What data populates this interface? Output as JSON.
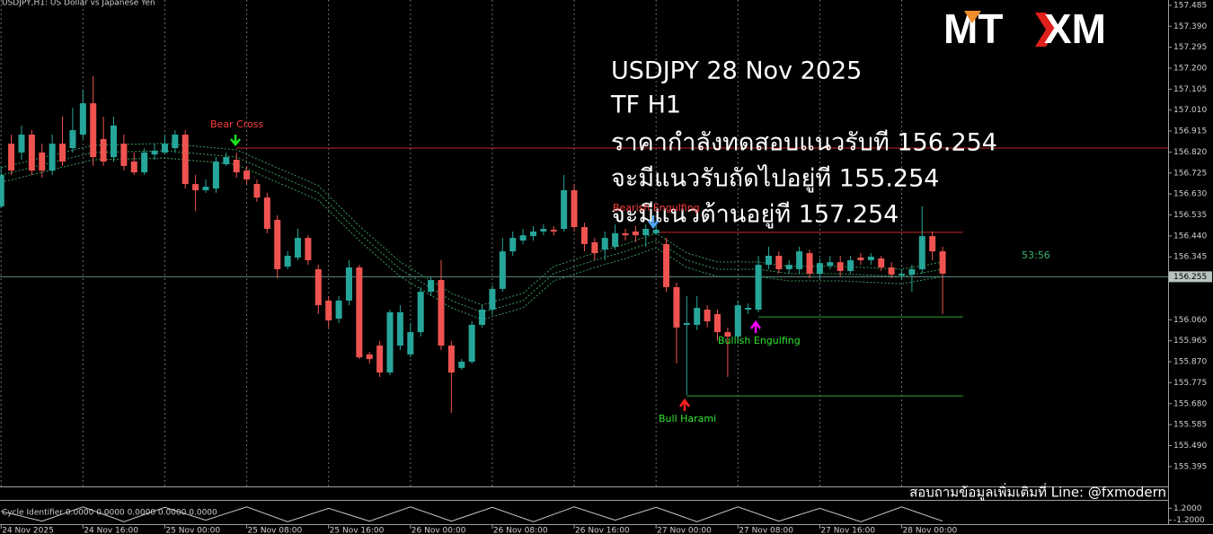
{
  "chart_data": {
    "type": "candlestick",
    "title": "USDJPY,H1: US Dollar vs Japanese Yen",
    "up_color": "#26a69a",
    "down_color": "#ef5350",
    "ylim": [
      155.313,
      157.509
    ],
    "yticks": [
      157.485,
      {
        "value": 157.39,
        "label": "157.390"
      },
      157.295,
      {
        "value": 157.2,
        "label": "157.200"
      },
      157.105,
      {
        "value": 157.01,
        "label": "157.010"
      },
      156.915,
      {
        "value": 156.82,
        "label": "156.820"
      },
      156.725,
      {
        "value": 156.63,
        "label": "156.630"
      },
      156.535,
      {
        "value": 156.44,
        "label": "156.440"
      },
      156.345,
      {
        "value": 156.06,
        "label": "156.060"
      },
      155.965,
      {
        "value": 155.87,
        "label": "155.870"
      },
      155.775,
      {
        "value": 155.68,
        "label": "155.680"
      },
      155.585,
      {
        "value": 155.49,
        "label": "155.490"
      },
      155.395
    ],
    "xticks": [
      {
        "value": 0,
        "label": "24 Nov 2025"
      },
      {
        "value": 8,
        "label": "24 Nov 16:00"
      },
      {
        "value": 16,
        "label": "25 Nov 00:00"
      },
      {
        "value": 24,
        "label": "25 Nov 08:00"
      },
      {
        "value": 32,
        "label": "25 Nov 16:00"
      },
      {
        "value": 40,
        "label": "26 Nov 00:00"
      },
      {
        "value": 48,
        "label": "26 Nov 08:00"
      },
      {
        "value": 56,
        "label": "26 Nov 16:00"
      },
      {
        "value": 64,
        "label": "27 Nov 00:00"
      },
      {
        "value": 72,
        "label": "27 Nov 08:00"
      },
      {
        "value": 80,
        "label": "27 Nov 16:00"
      },
      {
        "value": 88,
        "label": "28 Nov 00:00"
      }
    ],
    "open": [
      156.574,
      156.858,
      156.818,
      156.899,
      156.818,
      156.736,
      156.858,
      156.838,
      156.899,
      157.041,
      156.879,
      156.797,
      156.858,
      156.777,
      156.728,
      156.809,
      156.818,
      156.838,
      156.899,
      156.675,
      156.647,
      156.655,
      156.765,
      156.785,
      156.736,
      156.675,
      156.614,
      156.513,
      156.301,
      156.342,
      156.431,
      156.289,
      156.147,
      156.065,
      156.147,
      156.297,
      155.903,
      155.943,
      155.821,
      155.943,
      155.903,
      156.004,
      156.187,
      156.24,
      155.943,
      155.842,
      155.87,
      156.037,
      156.106,
      156.2,
      156.37,
      156.419,
      156.439,
      156.46,
      156.468,
      156.472,
      156.647,
      156.48,
      156.411,
      156.378,
      156.391,
      156.452,
      156.46,
      156.443,
      156.452,
      156.403,
      156.208,
      156.037,
      156.037,
      156.106,
      156.086,
      156.004,
      155.984,
      156.106,
      156.106,
      156.309,
      156.35,
      156.289,
      156.289,
      156.362,
      156.269,
      156.305,
      156.321,
      156.281,
      156.342,
      156.33,
      156.338,
      156.297,
      156.261,
      156.265,
      156.289,
      156.439,
      156.37
    ],
    "high": [
      156.757,
      156.899,
      156.94,
      156.919,
      156.858,
      156.899,
      156.98,
      157.021,
      157.102,
      157.163,
      156.98,
      156.98,
      156.899,
      156.818,
      156.838,
      156.858,
      156.899,
      156.919,
      156.919,
      156.716,
      156.696,
      156.797,
      156.818,
      156.818,
      156.757,
      156.696,
      156.635,
      156.533,
      156.37,
      156.472,
      156.443,
      156.309,
      156.167,
      156.167,
      156.33,
      156.309,
      155.915,
      155.964,
      156.106,
      156.126,
      156.045,
      156.208,
      156.256,
      156.33,
      155.964,
      155.882,
      156.053,
      156.126,
      156.216,
      156.431,
      156.46,
      156.472,
      156.484,
      156.492,
      156.484,
      156.716,
      156.675,
      156.5,
      156.431,
      156.46,
      156.492,
      156.472,
      156.484,
      156.492,
      156.5,
      156.431,
      156.228,
      156.167,
      156.167,
      156.126,
      156.106,
      156.025,
      156.147,
      156.134,
      156.35,
      156.391,
      156.37,
      156.33,
      156.391,
      156.378,
      156.338,
      156.35,
      156.35,
      156.35,
      156.362,
      156.362,
      156.35,
      156.321,
      156.289,
      156.309,
      156.574,
      156.46,
      156.391
    ],
    "low": [
      156.566,
      156.716,
      156.785,
      156.716,
      156.704,
      156.716,
      156.757,
      156.818,
      156.879,
      156.757,
      156.757,
      156.777,
      156.736,
      156.716,
      156.716,
      156.785,
      156.809,
      156.818,
      156.655,
      156.553,
      156.635,
      156.635,
      156.757,
      156.704,
      156.675,
      156.594,
      156.452,
      156.248,
      156.289,
      156.33,
      156.309,
      156.086,
      156.025,
      156.045,
      156.126,
      155.882,
      155.862,
      155.801,
      155.809,
      155.923,
      155.89,
      155.984,
      156.167,
      155.923,
      155.638,
      155.833,
      155.862,
      156.025,
      156.086,
      156.187,
      156.35,
      156.403,
      156.419,
      156.443,
      156.443,
      156.46,
      156.46,
      156.37,
      156.33,
      156.33,
      156.378,
      156.419,
      156.411,
      156.391,
      156.443,
      156.187,
      155.862,
      155.719,
      156.013,
      156.025,
      155.964,
      155.801,
      155.964,
      156.086,
      156.094,
      156.289,
      156.269,
      156.269,
      156.269,
      156.248,
      156.248,
      156.289,
      156.256,
      156.269,
      156.309,
      156.309,
      156.281,
      156.248,
      156.24,
      156.187,
      156.269,
      156.33,
      156.086
    ],
    "close": [
      156.716,
      156.736,
      156.899,
      156.736,
      156.736,
      156.858,
      156.777,
      156.919,
      157.041,
      156.797,
      156.777,
      156.94,
      156.757,
      156.728,
      156.818,
      156.826,
      156.858,
      156.899,
      156.675,
      156.647,
      156.663,
      156.777,
      156.797,
      156.728,
      156.696,
      156.614,
      156.472,
      156.289,
      156.35,
      156.431,
      156.33,
      156.126,
      156.057,
      156.147,
      156.297,
      155.89,
      155.882,
      155.821,
      156.094,
      156.094,
      156.004,
      156.187,
      156.24,
      155.943,
      155.821,
      155.87,
      156.037,
      156.106,
      156.2,
      156.37,
      156.431,
      156.443,
      156.46,
      156.472,
      156.46,
      156.647,
      156.48,
      156.403,
      156.362,
      156.431,
      156.452,
      156.443,
      156.443,
      156.472,
      156.468,
      156.208,
      156.025,
      156.045,
      156.114,
      156.053,
      156.004,
      155.984,
      156.126,
      156.114,
      156.309,
      156.35,
      156.289,
      156.309,
      156.37,
      156.269,
      156.317,
      156.321,
      156.281,
      156.33,
      156.33,
      156.346,
      156.297,
      156.265,
      156.269,
      156.289,
      156.439,
      156.37,
      156.269
    ],
    "envelope": {
      "x": [
        0,
        9,
        16,
        23,
        26,
        31,
        35,
        39,
        44,
        47,
        51,
        54,
        58,
        61,
        64,
        67,
        70,
        74,
        77,
        82,
        88,
        92
      ],
      "series": [
        {
          "color": "#3a9a5b",
          "values": [
            156.749,
            156.851,
            156.859,
            156.83,
            156.769,
            156.668,
            156.485,
            156.322,
            156.18,
            156.127,
            156.18,
            156.302,
            156.363,
            156.403,
            156.452,
            156.363,
            156.322,
            156.322,
            156.302,
            156.302,
            156.289,
            156.322
          ]
        },
        {
          "color": "#3a9a5b",
          "values": [
            156.716,
            156.818,
            156.826,
            156.797,
            156.736,
            156.635,
            156.452,
            156.289,
            156.147,
            156.094,
            156.147,
            156.269,
            156.33,
            156.37,
            156.419,
            156.33,
            156.289,
            156.289,
            156.269,
            156.269,
            156.256,
            156.289
          ]
        },
        {
          "color": "#3a9a5b",
          "values": [
            156.683,
            156.785,
            156.793,
            156.764,
            156.703,
            156.602,
            156.419,
            156.256,
            156.114,
            156.061,
            156.114,
            156.236,
            156.297,
            156.337,
            156.386,
            156.297,
            156.256,
            156.256,
            156.236,
            156.236,
            156.223,
            156.256
          ]
        }
      ]
    },
    "levels": [
      {
        "value": 156.838,
        "color": "#c62828",
        "from": 23
      },
      {
        "value": 156.456,
        "color": "#c62828",
        "from": 64,
        "to": 94
      },
      {
        "value": 156.073,
        "color": "#2e9e2e",
        "from": 74,
        "to": 94
      },
      {
        "value": 155.715,
        "color": "#2e9e2e",
        "from": 67,
        "to": 94
      }
    ],
    "last_price": {
      "value": 156.255,
      "label": "156.255"
    },
    "countdown": "53:56",
    "signals": [
      "Bear Cross",
      "Bearish Engulfing",
      "Bull Harami",
      "Bullish Engulfing"
    ],
    "notes": [
      "USDJPY 28 Nov 2025",
      "TF H1",
      "ราคากำลังทดสอบแนวรับที 156.254",
      "จะมีแนวรับถัดไปอยู่ที 155.254",
      "จะมีแนวต้านอยู่ที 157.254"
    ],
    "logo": [
      "MT",
      "XM"
    ],
    "footer": "สอบถามข้อมูลเพิ่มเติมที่ Line: @fxmodern",
    "indicator": {
      "title": "Cycle Identifier 0.0000 0.0000 0.0000 0.0000 0.0000",
      "ylim": [
        -2,
        2
      ],
      "yticks": [
        {
          "value": 1.2,
          "label": "1.2000"
        },
        {
          "value": -1.2,
          "label": "-1.2000"
        }
      ],
      "color": "#c8c8c8",
      "x": [
        0,
        4,
        8,
        12,
        16,
        20,
        24,
        28,
        32,
        36,
        40,
        44,
        48,
        52,
        56,
        60,
        64,
        68,
        72,
        76,
        80,
        84,
        88,
        92
      ],
      "values": [
        0.6,
        -1.4,
        1.5,
        -1.5,
        1.4,
        -1.2,
        1.5,
        -1.5,
        1.2,
        -1.4,
        1.5,
        -1.4,
        1.4,
        -1.5,
        1.5,
        -1.2,
        1.4,
        -1.5,
        1.5,
        -1.4,
        1.2,
        -1.5,
        1.5,
        -1.4
      ]
    }
  }
}
